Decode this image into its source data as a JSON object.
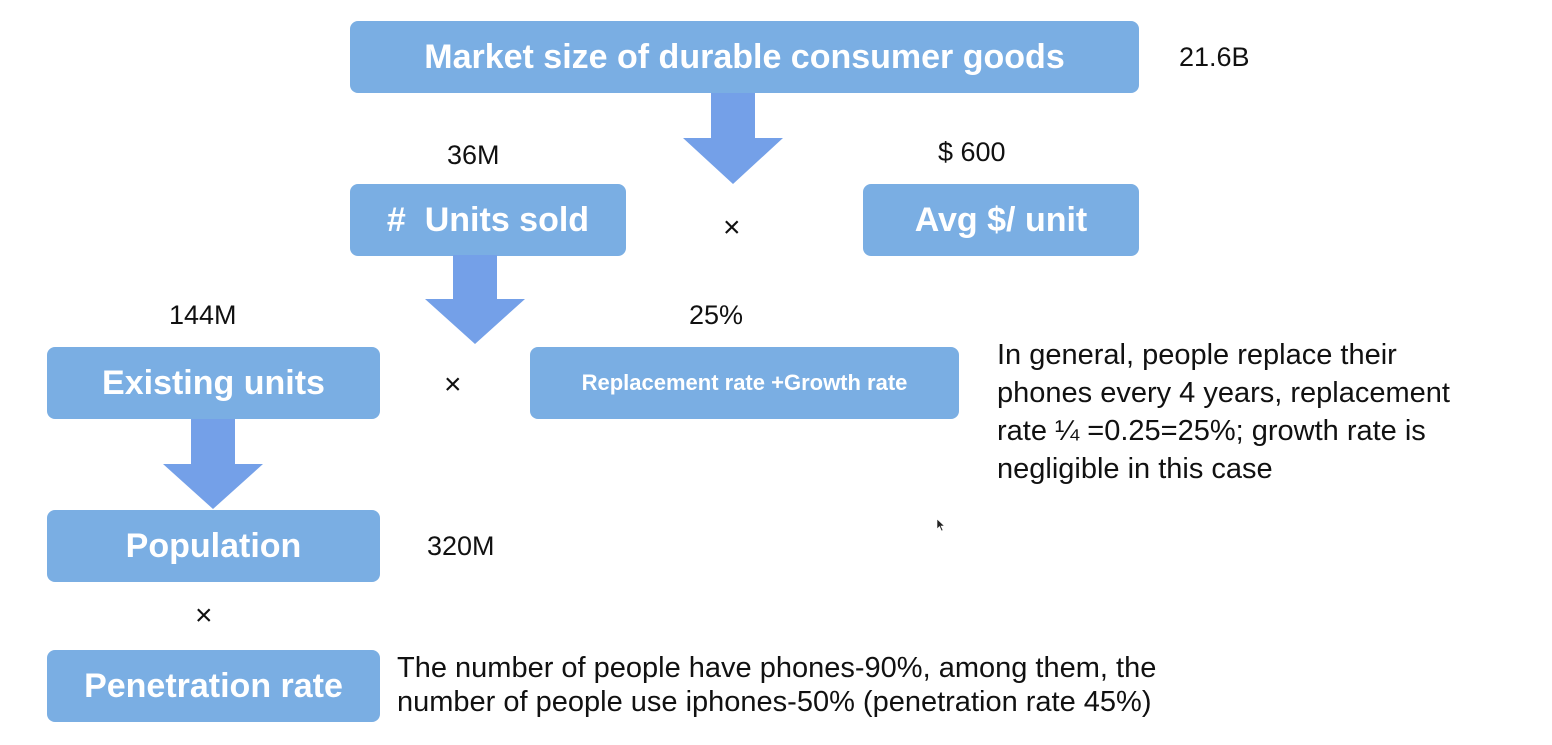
{
  "boxes": {
    "market_size": "Market size of durable consumer goods",
    "units_sold": "#  Units sold",
    "avg_price": "Avg $/ unit",
    "existing_units": "Existing units",
    "replacement_rate": "Replacement rate +Growth rate",
    "population": "Population",
    "penetration_rate": "Penetration rate"
  },
  "values": {
    "market_size": "21.6B",
    "units_sold": "36M",
    "avg_price": "$ 600",
    "existing_units": "144M",
    "replacement_rate": "25%",
    "population": "320M"
  },
  "operators": {
    "multiply": "×"
  },
  "notes": {
    "replacement": [
      "In general, people replace their",
      "phones every 4 years, replacement",
      "rate ¼ =0.25=25%; growth rate is",
      "negligible in this case"
    ],
    "penetration": [
      "The number of people have phones-90%, among them, the",
      "number of people use iphones-50% (penetration rate 45%)"
    ]
  },
  "colors": {
    "box_fill": "#7aaee3",
    "arrow_fill": "#74a0e8",
    "box_text": "#ffffff"
  }
}
